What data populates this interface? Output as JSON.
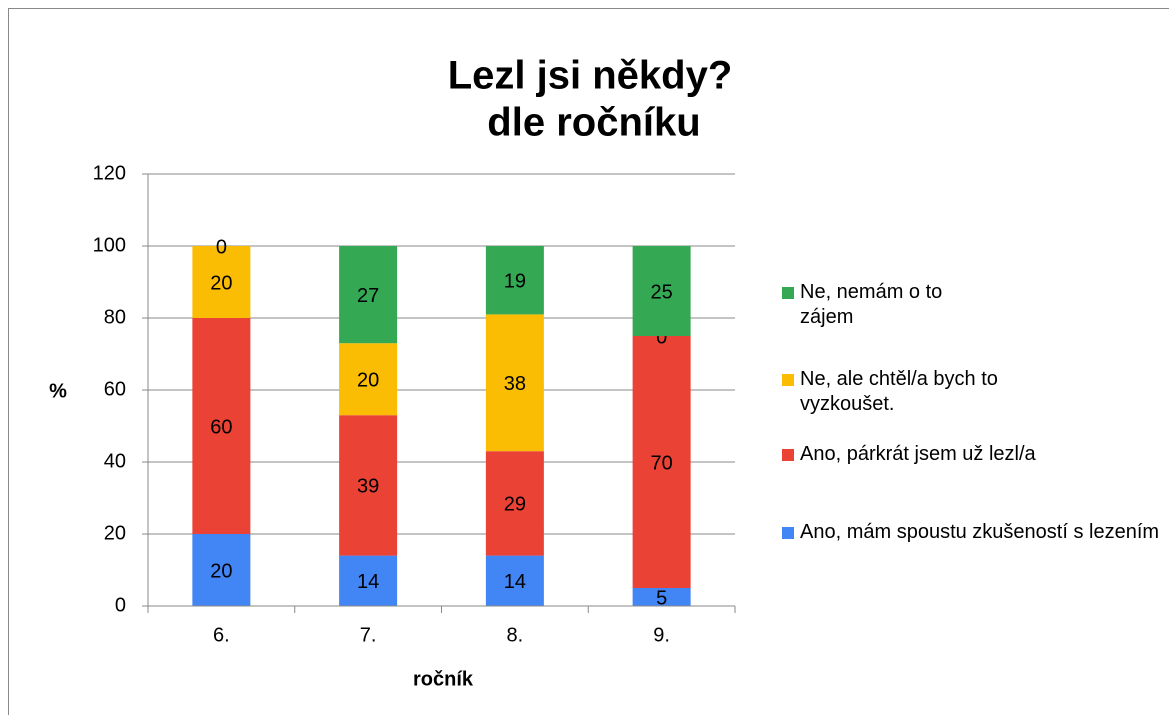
{
  "chart_data": {
    "type": "stacked_bar",
    "title": [
      "Lezl jsi někdy?",
      "dle ročníku"
    ],
    "x_label": "ročník",
    "y_label": "%",
    "categories": [
      "6.",
      "7.",
      "8.",
      "9."
    ],
    "series": [
      {
        "name": "Ano, mám spoustu zkušeností s lezením",
        "color": "#4285f4",
        "values": [
          20,
          14,
          14,
          5
        ]
      },
      {
        "name": "Ano, párkrát jsem už lezl/a",
        "color": "#ea4335",
        "values": [
          60,
          39,
          29,
          70
        ]
      },
      {
        "name": "Ne, ale chtěl/a bych to vyzkoušet.",
        "color": "#fbbc04",
        "values": [
          20,
          20,
          38,
          0
        ]
      },
      {
        "name": "Ne, nemám o to zájem",
        "color": "#34a853",
        "values": [
          0,
          27,
          19,
          25
        ]
      }
    ],
    "ylim": [
      0,
      120
    ],
    "yticks": [
      0,
      20,
      40,
      60,
      80,
      100,
      120
    ],
    "grid": true,
    "legend": "right"
  }
}
